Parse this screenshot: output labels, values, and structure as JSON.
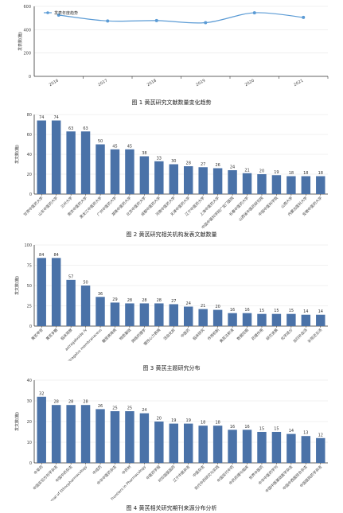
{
  "chart_data": [
    {
      "type": "line",
      "caption": "图 1 黄芪研究文献数量变化趋势",
      "x": [
        "2016",
        "2017",
        "2018",
        "2019",
        "2020",
        "2021"
      ],
      "series": [
        {
          "name": "发表年度趋势",
          "values": [
            525,
            475,
            478,
            460,
            545,
            505
          ],
          "color": "#5b9bd5"
        }
      ],
      "ylabel": "发表数(篇)",
      "ylim": [
        0,
        600
      ],
      "yticks": [
        0,
        200,
        400,
        600
      ],
      "grid": "horizontal",
      "legend": "top-left"
    },
    {
      "type": "bar",
      "caption": "图 2 黄芪研究相关机构发表文献数量",
      "ylabel": "发文数(篇)",
      "ylim": [
        0,
        80
      ],
      "yticks": [
        0,
        20,
        40,
        60,
        80
      ],
      "categories": [
        "甘肃中医药大学",
        "山东中医药大学",
        "兰州大学",
        "南京中医药大学",
        "黑龙江中医药大学",
        "广州中医药大学",
        "湖南中医药大学",
        "北京中医药大学",
        "成都中医药大学",
        "河南中医药大学",
        "天津中医药大学",
        "辽宁中医药大学",
        "上海中医药大学",
        "中国中医科学院广安门医院",
        "长春中医药大学",
        "山西省中医药研究院",
        "中国中医科学院",
        "山西大学",
        "内蒙古医科大学",
        "安徽中医药大学"
      ],
      "values": [
        74,
        74,
        63,
        63,
        50,
        45,
        45,
        38,
        33,
        30,
        28,
        27,
        26,
        24,
        21,
        20,
        19,
        18,
        18,
        18
      ],
      "color": "#4a72a8"
    },
    {
      "type": "bar",
      "caption": "图 3 黄芪主题研究分布",
      "ylabel": "发文数(篇)",
      "ylim": [
        0,
        100
      ],
      "yticks": [
        0,
        25,
        50,
        75,
        100
      ],
      "categories": [
        "黄芪甲苷",
        "黄芪多糖",
        "临床观察",
        "astragaloside IV",
        "Astragalus membranaceus",
        "糖尿病肾病",
        "物质基础",
        "网络药理学",
        "慢性心力衰竭",
        "活血化瘀",
        "中医药",
        "临床研究",
        "作用机制",
        "黄芪注射液",
        "数据挖掘",
        "药理作用",
        "研究进展",
        "化学成分",
        "当归补血汤",
        "补阳还五汤"
      ],
      "values": [
        84,
        84,
        57,
        50,
        36,
        29,
        28,
        28,
        28,
        27,
        24,
        21,
        20,
        16,
        16,
        15,
        15,
        15,
        14,
        14
      ],
      "color": "#4a72a8"
    },
    {
      "type": "bar",
      "caption": "图 4 黄芪相关研究期刊来源分布分析",
      "ylabel": "发文数(篇)",
      "ylim": [
        0,
        40
      ],
      "yticks": [
        0,
        10,
        20,
        30,
        40
      ],
      "categories": [
        "中草药",
        "中国实验方剂学杂志",
        "中国中药杂志",
        "Journal of Ethnopharmacology",
        "中成药",
        "中华中医药杂志",
        "中药材",
        "Frontiers in Pharmacology",
        "中医药学报",
        "时珍国医国药",
        "辽宁中医杂志",
        "中医杂志",
        "现代中药研究与实践",
        "中国现代中药",
        "中药药理与临床",
        "世界中医药",
        "中华中医药学刊",
        "中国中医基础医学杂志",
        "中国中西医结合杂志",
        "中国医院药学杂志"
      ],
      "values": [
        32,
        28,
        28,
        28,
        26,
        25,
        25,
        24,
        20,
        19,
        19,
        18,
        18,
        16,
        16,
        15,
        15,
        14,
        13,
        12
      ],
      "color": "#4a72a8"
    }
  ]
}
